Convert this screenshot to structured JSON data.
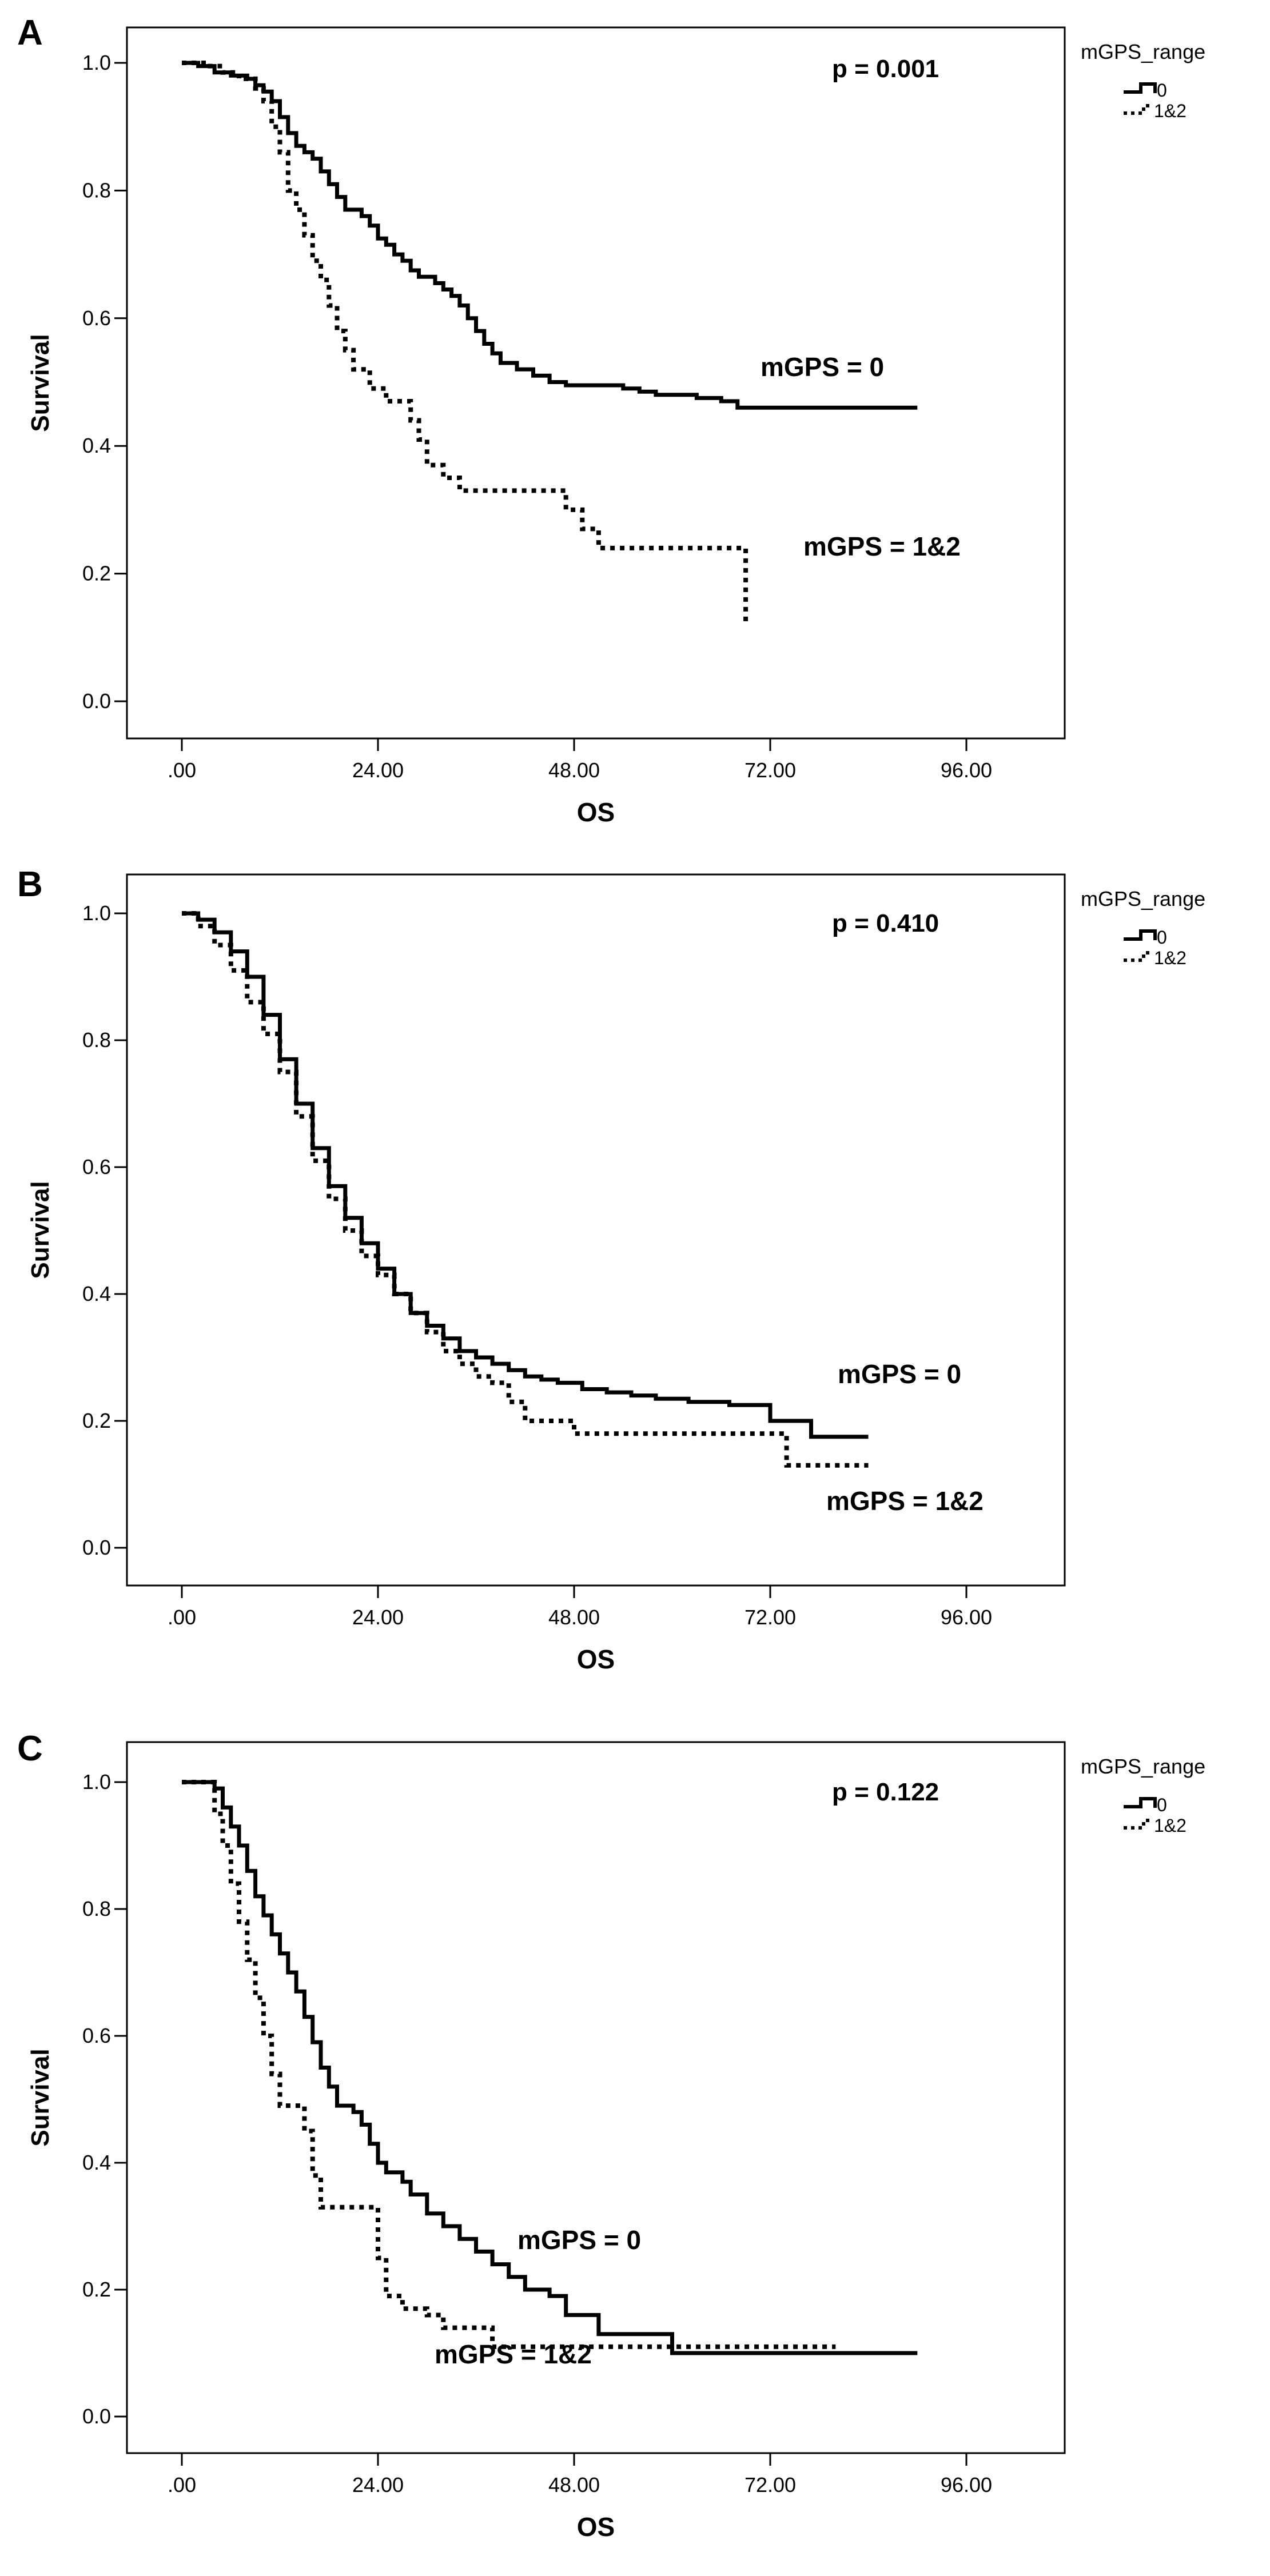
{
  "chart_data": [
    {
      "panel_label": "A",
      "type": "line",
      "xlabel": "OS",
      "ylabel": "Survival",
      "xlim": [
        0,
        96
      ],
      "ylim": [
        0,
        1
      ],
      "x_ticks": [
        ".00",
        "24.00",
        "48.00",
        "72.00",
        "96.00"
      ],
      "y_ticks": [
        "0.0",
        "0.2",
        "0.4",
        "0.6",
        "0.8",
        "1.0"
      ],
      "p_value": "p = 0.001",
      "legend": {
        "title": "mGPS_range",
        "placement": "outside-top-right",
        "entries": [
          "0",
          "1&2"
        ]
      },
      "series": [
        {
          "name": "0",
          "style": "solid",
          "annotation": "mGPS = 0",
          "points": [
            [
              0,
              1.0
            ],
            [
              2,
              0.995
            ],
            [
              4,
              0.985
            ],
            [
              6,
              0.98
            ],
            [
              8,
              0.975
            ],
            [
              9,
              0.965
            ],
            [
              10,
              0.955
            ],
            [
              11,
              0.94
            ],
            [
              12,
              0.915
            ],
            [
              13,
              0.89
            ],
            [
              14,
              0.87
            ],
            [
              15,
              0.86
            ],
            [
              16,
              0.85
            ],
            [
              17,
              0.83
            ],
            [
              18,
              0.81
            ],
            [
              19,
              0.79
            ],
            [
              20,
              0.77
            ],
            [
              22,
              0.76
            ],
            [
              23,
              0.745
            ],
            [
              24,
              0.725
            ],
            [
              25,
              0.715
            ],
            [
              26,
              0.7
            ],
            [
              27,
              0.69
            ],
            [
              28,
              0.675
            ],
            [
              29,
              0.665
            ],
            [
              31,
              0.655
            ],
            [
              32,
              0.645
            ],
            [
              33,
              0.635
            ],
            [
              34,
              0.62
            ],
            [
              35,
              0.6
            ],
            [
              36,
              0.58
            ],
            [
              37,
              0.56
            ],
            [
              38,
              0.545
            ],
            [
              39,
              0.53
            ],
            [
              41,
              0.52
            ],
            [
              43,
              0.51
            ],
            [
              45,
              0.5
            ],
            [
              47,
              0.495
            ],
            [
              52,
              0.495
            ],
            [
              54,
              0.49
            ],
            [
              56,
              0.485
            ],
            [
              58,
              0.48
            ],
            [
              63,
              0.475
            ],
            [
              66,
              0.47
            ],
            [
              68,
              0.46
            ],
            [
              90,
              0.46
            ]
          ]
        },
        {
          "name": "1&2",
          "style": "dotted",
          "annotation": "mGPS = 1&2",
          "points": [
            [
              0,
              1.0
            ],
            [
              2,
              1.0
            ],
            [
              3,
              0.995
            ],
            [
              5,
              0.985
            ],
            [
              7,
              0.975
            ],
            [
              9,
              0.96
            ],
            [
              10,
              0.94
            ],
            [
              11,
              0.9
            ],
            [
              12,
              0.86
            ],
            [
              13,
              0.8
            ],
            [
              14,
              0.77
            ],
            [
              15,
              0.73
            ],
            [
              16,
              0.69
            ],
            [
              17,
              0.66
            ],
            [
              18,
              0.62
            ],
            [
              19,
              0.58
            ],
            [
              20,
              0.55
            ],
            [
              21,
              0.52
            ],
            [
              23,
              0.49
            ],
            [
              25,
              0.47
            ],
            [
              28,
              0.44
            ],
            [
              29,
              0.41
            ],
            [
              30,
              0.37
            ],
            [
              32,
              0.35
            ],
            [
              34,
              0.33
            ],
            [
              42,
              0.33
            ],
            [
              47,
              0.3
            ],
            [
              49,
              0.27
            ],
            [
              51,
              0.24
            ],
            [
              58,
              0.24
            ],
            [
              69,
              0.24
            ],
            [
              69,
              0.12
            ]
          ]
        }
      ]
    },
    {
      "panel_label": "B",
      "type": "line",
      "xlabel": "OS",
      "ylabel": "Survival",
      "xlim": [
        0,
        96
      ],
      "ylim": [
        0,
        1
      ],
      "x_ticks": [
        ".00",
        "24.00",
        "48.00",
        "72.00",
        "96.00"
      ],
      "y_ticks": [
        "0.0",
        "0.2",
        "0.4",
        "0.6",
        "0.8",
        "1.0"
      ],
      "p_value": "p = 0.410",
      "legend": {
        "title": "mGPS_range",
        "placement": "outside-top-right",
        "entries": [
          "0",
          "1&2"
        ]
      },
      "series": [
        {
          "name": "0",
          "style": "solid",
          "annotation": "mGPS = 0",
          "points": [
            [
              0,
              1.0
            ],
            [
              2,
              0.99
            ],
            [
              4,
              0.97
            ],
            [
              6,
              0.94
            ],
            [
              8,
              0.9
            ],
            [
              10,
              0.84
            ],
            [
              12,
              0.77
            ],
            [
              14,
              0.7
            ],
            [
              16,
              0.63
            ],
            [
              18,
              0.57
            ],
            [
              20,
              0.52
            ],
            [
              22,
              0.48
            ],
            [
              24,
              0.44
            ],
            [
              26,
              0.4
            ],
            [
              28,
              0.37
            ],
            [
              30,
              0.35
            ],
            [
              32,
              0.33
            ],
            [
              34,
              0.31
            ],
            [
              36,
              0.3
            ],
            [
              38,
              0.29
            ],
            [
              40,
              0.28
            ],
            [
              42,
              0.27
            ],
            [
              44,
              0.265
            ],
            [
              46,
              0.26
            ],
            [
              49,
              0.25
            ],
            [
              52,
              0.245
            ],
            [
              55,
              0.24
            ],
            [
              58,
              0.235
            ],
            [
              62,
              0.23
            ],
            [
              67,
              0.225
            ],
            [
              72,
              0.2
            ],
            [
              77,
              0.175
            ],
            [
              84,
              0.175
            ]
          ]
        },
        {
          "name": "1&2",
          "style": "dotted",
          "annotation": "mGPS = 1&2",
          "points": [
            [
              0,
              1.0
            ],
            [
              2,
              0.98
            ],
            [
              4,
              0.95
            ],
            [
              6,
              0.91
            ],
            [
              8,
              0.86
            ],
            [
              10,
              0.81
            ],
            [
              12,
              0.75
            ],
            [
              14,
              0.68
            ],
            [
              16,
              0.61
            ],
            [
              18,
              0.55
            ],
            [
              20,
              0.5
            ],
            [
              22,
              0.46
            ],
            [
              24,
              0.43
            ],
            [
              26,
              0.4
            ],
            [
              28,
              0.37
            ],
            [
              30,
              0.34
            ],
            [
              32,
              0.31
            ],
            [
              34,
              0.29
            ],
            [
              36,
              0.27
            ],
            [
              38,
              0.26
            ],
            [
              40,
              0.23
            ],
            [
              42,
              0.2
            ],
            [
              45,
              0.2
            ],
            [
              48,
              0.18
            ],
            [
              60,
              0.18
            ],
            [
              70,
              0.18
            ],
            [
              74,
              0.13
            ],
            [
              84,
              0.13
            ]
          ]
        }
      ]
    },
    {
      "panel_label": "C",
      "type": "line",
      "xlabel": "OS",
      "ylabel": "Survival",
      "xlim": [
        0,
        96
      ],
      "ylim": [
        0,
        1
      ],
      "x_ticks": [
        ".00",
        "24.00",
        "48.00",
        "72.00",
        "96.00"
      ],
      "y_ticks": [
        "0.0",
        "0.2",
        "0.4",
        "0.6",
        "0.8",
        "1.0"
      ],
      "p_value": "p = 0.122",
      "legend": {
        "title": "mGPS_range",
        "placement": "outside-top-right",
        "entries": [
          "0",
          "1&2"
        ]
      },
      "series": [
        {
          "name": "0",
          "style": "solid",
          "annotation": "mGPS = 0",
          "points": [
            [
              0,
              1.0
            ],
            [
              3,
              1.0
            ],
            [
              4,
              0.99
            ],
            [
              5,
              0.96
            ],
            [
              6,
              0.93
            ],
            [
              7,
              0.9
            ],
            [
              8,
              0.86
            ],
            [
              9,
              0.82
            ],
            [
              10,
              0.79
            ],
            [
              11,
              0.76
            ],
            [
              12,
              0.73
            ],
            [
              13,
              0.7
            ],
            [
              14,
              0.67
            ],
            [
              15,
              0.63
            ],
            [
              16,
              0.59
            ],
            [
              17,
              0.55
            ],
            [
              18,
              0.52
            ],
            [
              19,
              0.49
            ],
            [
              21,
              0.48
            ],
            [
              22,
              0.46
            ],
            [
              23,
              0.43
            ],
            [
              24,
              0.4
            ],
            [
              25,
              0.385
            ],
            [
              27,
              0.37
            ],
            [
              28,
              0.35
            ],
            [
              30,
              0.32
            ],
            [
              32,
              0.3
            ],
            [
              34,
              0.28
            ],
            [
              36,
              0.26
            ],
            [
              38,
              0.24
            ],
            [
              40,
              0.22
            ],
            [
              42,
              0.2
            ],
            [
              45,
              0.19
            ],
            [
              47,
              0.16
            ],
            [
              50,
              0.16
            ],
            [
              51,
              0.13
            ],
            [
              56,
              0.13
            ],
            [
              60,
              0.1
            ],
            [
              75,
              0.1
            ],
            [
              90,
              0.1
            ]
          ]
        },
        {
          "name": "1&2",
          "style": "dotted",
          "annotation": "mGPS = 1&2",
          "points": [
            [
              0,
              1.0
            ],
            [
              3,
              1.0
            ],
            [
              4,
              0.95
            ],
            [
              5,
              0.9
            ],
            [
              6,
              0.84
            ],
            [
              7,
              0.78
            ],
            [
              8,
              0.72
            ],
            [
              9,
              0.66
            ],
            [
              10,
              0.6
            ],
            [
              11,
              0.54
            ],
            [
              12,
              0.49
            ],
            [
              14,
              0.49
            ],
            [
              15,
              0.45
            ],
            [
              16,
              0.38
            ],
            [
              17,
              0.33
            ],
            [
              23,
              0.33
            ],
            [
              24,
              0.25
            ],
            [
              25,
              0.19
            ],
            [
              27,
              0.17
            ],
            [
              30,
              0.16
            ],
            [
              32,
              0.14
            ],
            [
              36,
              0.14
            ],
            [
              38,
              0.11
            ],
            [
              48,
              0.11
            ],
            [
              57,
              0.11
            ],
            [
              66,
              0.11
            ],
            [
              80,
              0.11
            ]
          ]
        }
      ]
    }
  ]
}
